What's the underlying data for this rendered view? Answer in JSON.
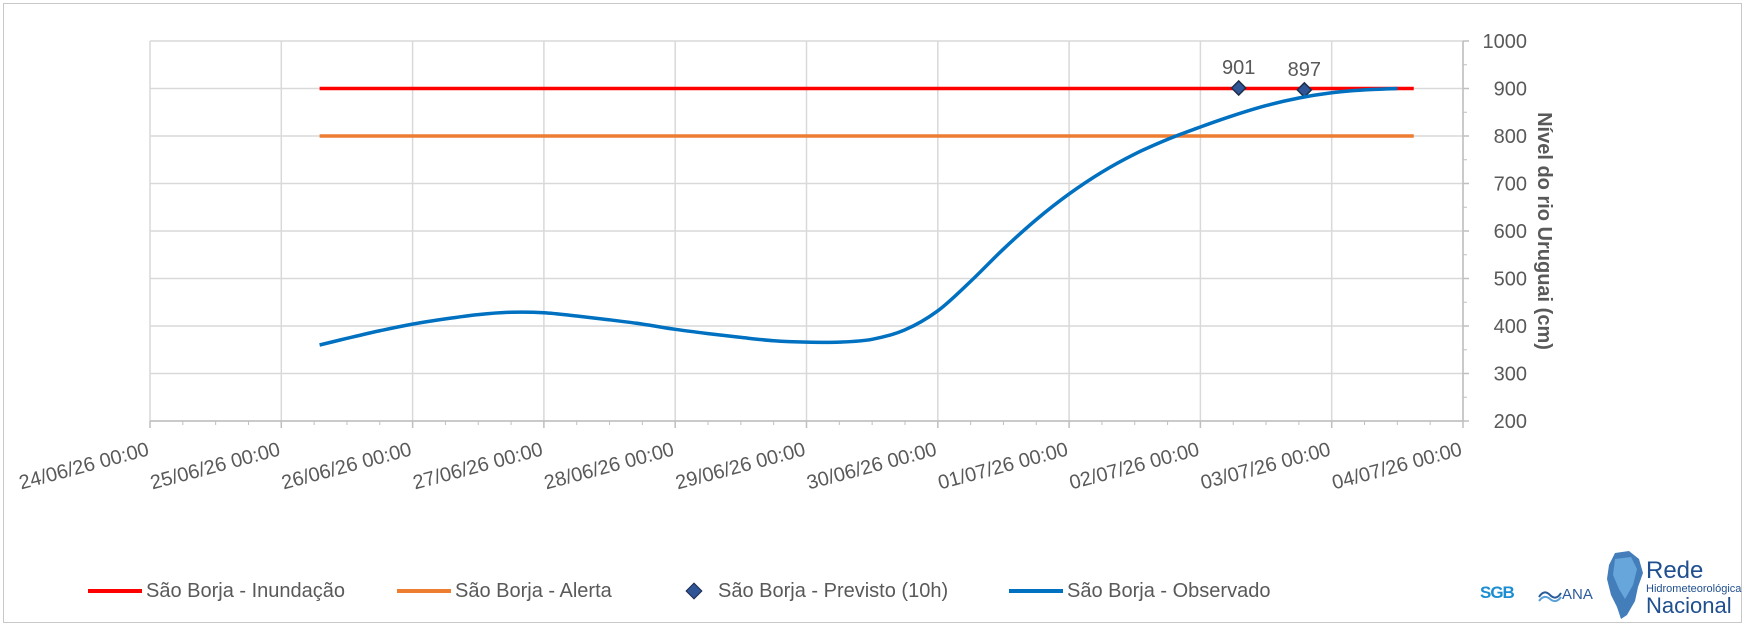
{
  "chart_data": {
    "type": "line",
    "x_axis": {
      "min": "24/06/26 00:00",
      "max": "04/07/26 00:00",
      "ticks": [
        "24/06/26 00:00",
        "25/06/26 00:00",
        "26/06/26 00:00",
        "27/06/26 00:00",
        "28/06/26 00:00",
        "29/06/26 00:00",
        "30/06/26 00:00",
        "01/07/26 00:00",
        "02/07/26 00:00",
        "03/07/26 00:00",
        "04/07/26 00:00"
      ]
    },
    "y_axis": {
      "label": "Nível do rio Uruguai (cm)",
      "position": "right",
      "min": 200,
      "max": 1000,
      "step": 100,
      "ticks": [
        "200",
        "300",
        "400",
        "500",
        "600",
        "700",
        "800",
        "900",
        "1000"
      ]
    },
    "grid": true,
    "legend_position": "bottom",
    "series": [
      {
        "name": "São Borja - Inundação",
        "kind": "line",
        "color": "#ff0000",
        "points": [
          [
            "25/06/26 07:00",
            900
          ],
          [
            "03/07/26 15:00",
            900
          ]
        ]
      },
      {
        "name": "São Borja - Alerta",
        "kind": "line",
        "color": "#ed7d31",
        "points": [
          [
            "25/06/26 07:00",
            800
          ],
          [
            "03/07/26 15:00",
            800
          ]
        ]
      },
      {
        "name": "São Borja - Previsto (10h)",
        "kind": "marker",
        "color": "#2f5597",
        "points": [
          [
            "02/07/26 07:00",
            901
          ],
          [
            "02/07/26 19:00",
            897
          ]
        ],
        "data_labels": [
          "901",
          "897"
        ]
      },
      {
        "name": "São Borja - Observado",
        "kind": "line",
        "color": "#0070c0",
        "points": [
          [
            "25/06/26 07:00",
            360
          ],
          [
            "25/06/26 12:00",
            374
          ],
          [
            "25/06/26 18:00",
            390
          ],
          [
            "26/06/26 00:00",
            404
          ],
          [
            "26/06/26 06:00",
            415
          ],
          [
            "26/06/26 12:00",
            424
          ],
          [
            "26/06/26 18:00",
            429
          ],
          [
            "27/06/26 00:00",
            428
          ],
          [
            "27/06/26 06:00",
            421
          ],
          [
            "27/06/26 12:00",
            413
          ],
          [
            "27/06/26 18:00",
            404
          ],
          [
            "28/06/26 00:00",
            393
          ],
          [
            "28/06/26 06:00",
            384
          ],
          [
            "28/06/26 12:00",
            376
          ],
          [
            "28/06/26 18:00",
            369
          ],
          [
            "29/06/26 00:00",
            366
          ],
          [
            "29/06/26 06:00",
            366
          ],
          [
            "29/06/26 12:00",
            372
          ],
          [
            "29/06/26 18:00",
            392
          ],
          [
            "30/06/26 00:00",
            432
          ],
          [
            "30/06/26 06:00",
            494
          ],
          [
            "30/06/26 12:00",
            562
          ],
          [
            "30/06/26 18:00",
            624
          ],
          [
            "01/07/26 00:00",
            678
          ],
          [
            "01/07/26 06:00",
            724
          ],
          [
            "01/07/26 12:00",
            762
          ],
          [
            "01/07/26 18:00",
            793
          ],
          [
            "02/07/26 00:00",
            819
          ],
          [
            "02/07/26 06:00",
            843
          ],
          [
            "02/07/26 12:00",
            864
          ],
          [
            "02/07/26 18:00",
            880
          ],
          [
            "03/07/26 00:00",
            891
          ],
          [
            "03/07/26 06:00",
            897
          ],
          [
            "03/07/26 12:00",
            900
          ]
        ]
      }
    ]
  },
  "logos": {
    "sgb": "SGB",
    "ana": "ANA",
    "rede_line1": "Rede",
    "rede_line2": "Hidrometeorológica",
    "rede_line3": "Nacional"
  }
}
